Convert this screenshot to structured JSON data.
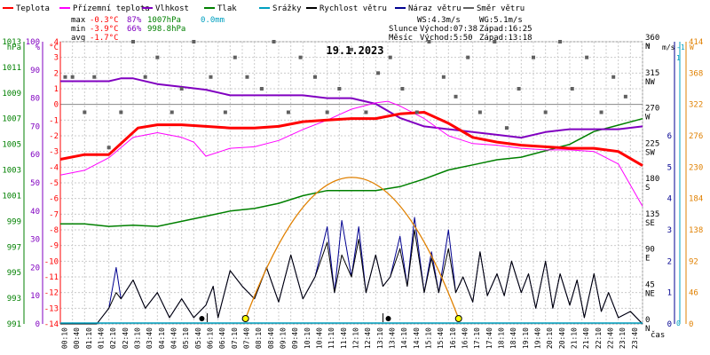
{
  "legend": [
    {
      "label": "Teplota",
      "color": "#ff0000"
    },
    {
      "label": "Přízemní teplota",
      "color": "#ff00ff"
    },
    {
      "label": "Vlhkost",
      "color": "#8000c0"
    },
    {
      "label": "Tlak",
      "color": "#008000"
    },
    {
      "label": "Srážky",
      "color": "#00a0c0"
    },
    {
      "label": "Rychlost větru",
      "color": "#000000"
    },
    {
      "label": "Náraz větru",
      "color": "#000090"
    },
    {
      "label": "Směr větru",
      "color": "#606060"
    }
  ],
  "stats": {
    "max": {
      "label": "max",
      "temp": "-0.3°C",
      "hum": "87%",
      "press": "1007hPa",
      "rain": "0.0mm"
    },
    "min": {
      "label": "min",
      "temp": "-3.9°C",
      "hum": "66%",
      "press": "998.8hPa"
    },
    "avg": {
      "label": "avg",
      "temp": "-1.7°C"
    }
  },
  "wind_info": {
    "ws": "WS:4.3m/s",
    "wg": "WG:5.1m/s"
  },
  "sun": {
    "label": "Slunce",
    "rise": "Východ:07:38",
    "set": "Západ:16:25"
  },
  "moon": {
    "label": "Měsíc",
    "rise": "Východ:5:50",
    "set": "Západ:13:18"
  },
  "date": "19.1.2023",
  "x_label": "čas",
  "colors": {
    "temp": "#ff0000",
    "ground": "#ff00ff",
    "hum": "#8000c0",
    "press": "#008000",
    "rain": "#00a0c0",
    "wind": "#000000",
    "gust": "#000090",
    "dir": "#606060",
    "sunarc": "#e08000"
  },
  "chart_data": {
    "type": "line",
    "title": "19.1.2023",
    "x_ticks": [
      "00:10",
      "00:40",
      "01:10",
      "01:40",
      "02:10",
      "02:40",
      "03:10",
      "03:40",
      "04:10",
      "04:40",
      "05:10",
      "05:40",
      "06:10",
      "06:40",
      "07:10",
      "07:40",
      "08:10",
      "08:40",
      "09:10",
      "09:40",
      "10:10",
      "10:40",
      "11:10",
      "11:40",
      "12:10",
      "12:40",
      "13:10",
      "13:40",
      "14:10",
      "14:40",
      "15:10",
      "15:40",
      "16:10",
      "16:40",
      "17:10",
      "17:40",
      "18:10",
      "18:40",
      "19:10",
      "19:40",
      "20:10",
      "20:40",
      "21:10",
      "21:40",
      "22:10",
      "22:40",
      "23:10",
      "23:40"
    ],
    "axes": {
      "hpa": {
        "label": "hPa",
        "ticks": [
          "991",
          "993",
          "995",
          "997",
          "999",
          "1001",
          "1003",
          "1005",
          "1007",
          "1009",
          "1011",
          "1013"
        ],
        "range": [
          991,
          1013
        ]
      },
      "pct": {
        "label": "%",
        "ticks": [
          "0",
          "10",
          "20",
          "30",
          "40",
          "50",
          "60",
          "70",
          "80",
          "90",
          "100"
        ],
        "range": [
          0,
          100
        ]
      },
      "degc": {
        "label": "°C",
        "ticks": [
          "-14",
          "-13",
          "-12",
          "-11",
          "-10",
          "-9",
          "-8",
          "-7",
          "-6",
          "-5",
          "-4",
          "-3",
          "-2",
          "-1",
          "0",
          "1",
          "2",
          "3",
          "4"
        ],
        "range": [
          -14,
          4
        ]
      },
      "deg": {
        "label": "°",
        "ticks": [
          {
            "v": "0",
            "d": "N"
          },
          {
            "v": "45",
            "d": "NE"
          },
          {
            "v": "90",
            "d": "E"
          },
          {
            "v": "135",
            "d": "SE"
          },
          {
            "v": "180",
            "d": "S"
          },
          {
            "v": "225",
            "d": "SW"
          },
          {
            "v": "270",
            "d": "W"
          },
          {
            "v": "315",
            "d": "NW"
          },
          {
            "v": "360",
            "d": "N"
          }
        ],
        "range": [
          0,
          360
        ]
      },
      "ms": {
        "label": "m/s",
        "ticks": [
          "0",
          "1",
          "2",
          "3",
          "4",
          "5",
          "6"
        ],
        "range": [
          0,
          6
        ]
      },
      "rain": {
        "label": "-1",
        "ticks": [
          "0",
          "1"
        ],
        "range": [
          0,
          1
        ]
      },
      "wm2": {
        "label": "W",
        "ticks": [
          "0",
          "46",
          "92",
          "138",
          "184",
          "230",
          "276",
          "322",
          "368",
          "414"
        ],
        "range": [
          0,
          414
        ]
      }
    },
    "series": [
      {
        "name": "Teplota",
        "unit": "°C",
        "color": "#ff0000",
        "x": [
          0,
          1,
          2,
          3.2,
          4,
          5,
          6,
          7,
          8,
          9,
          10,
          11,
          12,
          13,
          14,
          15,
          16,
          17,
          18,
          19,
          20,
          21,
          22,
          23,
          24
        ],
        "y": [
          -3.5,
          -3.2,
          -3.2,
          -1.5,
          -1.3,
          -1.3,
          -1.4,
          -1.5,
          -1.5,
          -1.4,
          -1.1,
          -1.0,
          -0.9,
          -0.9,
          -0.6,
          -0.5,
          -1.2,
          -2.1,
          -2.4,
          -2.6,
          -2.7,
          -2.8,
          -2.8,
          -3.0,
          -3.9
        ]
      },
      {
        "name": "Přízemní teplota",
        "unit": "°C",
        "color": "#ff00ff",
        "x": [
          0,
          1,
          1.5,
          2,
          3,
          4,
          5,
          5.5,
          6,
          7,
          8,
          9,
          10,
          11,
          12,
          13,
          13.5,
          14,
          15,
          16,
          17,
          18,
          19,
          20,
          21,
          22,
          23,
          24
        ],
        "y": [
          -4.5,
          -4.2,
          -3.8,
          -3.4,
          -2.1,
          -1.8,
          -2.1,
          -2.4,
          -3.3,
          -2.8,
          -2.7,
          -2.3,
          -1.6,
          -1.0,
          -0.3,
          0.1,
          0.2,
          -0.1,
          -0.9,
          -2.0,
          -2.5,
          -2.6,
          -2.8,
          -2.9,
          -2.9,
          -3.0,
          -3.8,
          -6.5
        ]
      },
      {
        "name": "Vlhkost",
        "unit": "%",
        "color": "#8000c0",
        "x": [
          0,
          1,
          2,
          2.5,
          3,
          4,
          5,
          6,
          7,
          8,
          9,
          10,
          11,
          12,
          13,
          14,
          15,
          16,
          17,
          18,
          19,
          20,
          21,
          22,
          23,
          24
        ],
        "y": [
          86,
          86,
          86,
          87,
          87,
          85,
          84,
          83,
          81,
          81,
          81,
          81,
          80,
          80,
          78,
          73,
          70,
          69,
          68,
          67,
          66,
          68,
          69,
          69,
          69,
          70
        ]
      },
      {
        "name": "Tlak",
        "unit": "hPa",
        "color": "#008000",
        "x": [
          0,
          1,
          2,
          3,
          4,
          5,
          6,
          7,
          8,
          9,
          10,
          11,
          12,
          13,
          14,
          15,
          16,
          17,
          18,
          19,
          20,
          21,
          22,
          23,
          24
        ],
        "y": [
          998.8,
          998.8,
          998.6,
          998.7,
          998.6,
          999.0,
          999.4,
          999.8,
          1000.0,
          1000.4,
          1001.0,
          1001.4,
          1001.4,
          1001.4,
          1001.7,
          1002.3,
          1003.0,
          1003.4,
          1003.8,
          1004.0,
          1004.5,
          1005.0,
          1006.0,
          1006.5,
          1007.0
        ]
      },
      {
        "name": "Rychlost větru",
        "unit": "m/s",
        "color": "#000000",
        "x": [
          0,
          1,
          1.5,
          2,
          2.3,
          2.5,
          3,
          3.5,
          4,
          4.5,
          5,
          5.5,
          6,
          6.3,
          6.5,
          7,
          7.5,
          8,
          8.5,
          9,
          9.5,
          10,
          10.5,
          11,
          11.3,
          11.6,
          12,
          12.3,
          12.6,
          13,
          13.3,
          13.6,
          14,
          14.3,
          14.6,
          15,
          15.3,
          15.6,
          16,
          16.3,
          16.6,
          17,
          17.3,
          17.6,
          18,
          18.3,
          18.6,
          19,
          19.3,
          19.6,
          20,
          20.3,
          20.6,
          21,
          21.3,
          21.6,
          22,
          22.3,
          22.6,
          23,
          23.5,
          24
        ],
        "y": [
          0,
          0,
          0,
          0.5,
          1,
          0.8,
          1.4,
          0.5,
          1.0,
          0.2,
          0.8,
          0.2,
          0.6,
          1.2,
          0.2,
          1.7,
          1.2,
          0.8,
          1.8,
          0.7,
          2.2,
          0.8,
          1.5,
          2.6,
          1.0,
          2.2,
          1.5,
          2.7,
          1.0,
          2.2,
          1.2,
          1.5,
          2.4,
          1.2,
          3.0,
          1.0,
          2.1,
          1.0,
          2.4,
          1.0,
          1.5,
          0.7,
          2.3,
          0.9,
          1.6,
          0.9,
          2.0,
          1.0,
          1.6,
          0.5,
          2.0,
          0.5,
          1.6,
          0.6,
          1.4,
          0.2,
          1.6,
          0.4,
          1.0,
          0.2,
          0.4,
          0
        ]
      },
      {
        "name": "Náraz větru",
        "unit": "m/s",
        "color": "#000090",
        "x": [
          0,
          1,
          1.5,
          2,
          2.3,
          2.5,
          3,
          3.5,
          4,
          4.5,
          5,
          5.5,
          6,
          6.3,
          6.5,
          7,
          7.5,
          8,
          8.5,
          9,
          9.5,
          10,
          10.5,
          11,
          11.3,
          11.6,
          12,
          12.3,
          12.6,
          13,
          13.3,
          13.6,
          14,
          14.3,
          14.6,
          15,
          15.3,
          15.6,
          16,
          16.3,
          16.6,
          17,
          17.3,
          17.6,
          18,
          18.3,
          18.6,
          19,
          19.3,
          19.6,
          20,
          20.3,
          20.6,
          21,
          21.3,
          21.6,
          22,
          22.3,
          22.6,
          23,
          23.5,
          24
        ],
        "y": [
          0,
          0,
          0,
          0.5,
          1.8,
          0.8,
          1.4,
          0.5,
          1.0,
          0.2,
          0.8,
          0.2,
          0.6,
          1.2,
          0.2,
          1.7,
          1.2,
          0.8,
          1.8,
          0.7,
          2.2,
          0.8,
          1.5,
          3.1,
          1.0,
          3.3,
          1.5,
          3.1,
          1.0,
          2.2,
          1.2,
          1.5,
          2.8,
          1.2,
          3.4,
          1.0,
          2.3,
          1.0,
          3.0,
          1.0,
          1.5,
          0.7,
          2.3,
          0.9,
          1.6,
          0.9,
          2.0,
          1.0,
          1.6,
          0.5,
          2.0,
          0.5,
          1.6,
          0.6,
          1.4,
          0.2,
          1.6,
          0.4,
          1.0,
          0.2,
          0.4,
          0
        ]
      },
      {
        "name": "Směr větru",
        "unit": "°",
        "color": "#606060",
        "x": [
          0.2,
          0.5,
          1.0,
          1.4,
          2.0,
          2.5,
          3.0,
          3.5,
          4.0,
          4.6,
          5.0,
          5.5,
          6.2,
          6.8,
          7.2,
          7.7,
          8.3,
          8.8,
          9.4,
          9.9,
          10.5,
          11.0,
          11.5,
          12.0,
          12.6,
          13.1,
          13.6,
          14.1,
          14.7,
          15.2,
          15.8,
          16.3,
          16.8,
          17.3,
          17.9,
          18.4,
          18.9,
          19.5,
          20.0,
          20.6,
          21.1,
          21.7,
          22.3,
          22.8,
          23.3
        ],
        "y": [
          315,
          315,
          270,
          315,
          225,
          270,
          360,
          315,
          340,
          270,
          300,
          360,
          315,
          270,
          340,
          315,
          300,
          360,
          270,
          340,
          315,
          270,
          300,
          350,
          270,
          320,
          340,
          300,
          270,
          360,
          315,
          290,
          340,
          270,
          360,
          250,
          300,
          340,
          270,
          360,
          300,
          340,
          270,
          315,
          290
        ]
      }
    ],
    "sun_arc": {
      "rise": "7:38",
      "set": "16:25"
    }
  }
}
